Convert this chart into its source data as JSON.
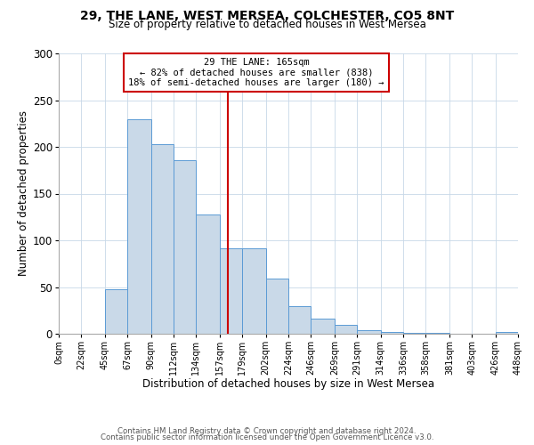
{
  "title": "29, THE LANE, WEST MERSEA, COLCHESTER, CO5 8NT",
  "subtitle": "Size of property relative to detached houses in West Mersea",
  "xlabel": "Distribution of detached houses by size in West Mersea",
  "ylabel": "Number of detached properties",
  "bin_edges": [
    0,
    22,
    45,
    67,
    90,
    112,
    134,
    157,
    179,
    202,
    224,
    246,
    269,
    291,
    314,
    336,
    358,
    381,
    403,
    426,
    448
  ],
  "bin_labels": [
    "0sqm",
    "22sqm",
    "45sqm",
    "67sqm",
    "90sqm",
    "112sqm",
    "134sqm",
    "157sqm",
    "179sqm",
    "202sqm",
    "224sqm",
    "246sqm",
    "269sqm",
    "291sqm",
    "314sqm",
    "336sqm",
    "358sqm",
    "381sqm",
    "403sqm",
    "426sqm",
    "448sqm"
  ],
  "counts": [
    0,
    0,
    48,
    230,
    203,
    186,
    128,
    91,
    91,
    59,
    30,
    16,
    10,
    4,
    2,
    1,
    1,
    0,
    0,
    2
  ],
  "bar_facecolor": "#c9d9e8",
  "bar_edgecolor": "#5b9bd5",
  "vline_x": 165,
  "vline_color": "#cc0000",
  "ylim": [
    0,
    300
  ],
  "yticks": [
    0,
    50,
    100,
    150,
    200,
    250,
    300
  ],
  "annotation_title": "29 THE LANE: 165sqm",
  "annotation_line1": "← 82% of detached houses are smaller (838)",
  "annotation_line2": "18% of semi-detached houses are larger (180) →",
  "annotation_box_color": "#cc0000",
  "footer_line1": "Contains HM Land Registry data © Crown copyright and database right 2024.",
  "footer_line2": "Contains public sector information licensed under the Open Government Licence v3.0.",
  "background_color": "#ffffff",
  "grid_color": "#c8d8e8"
}
